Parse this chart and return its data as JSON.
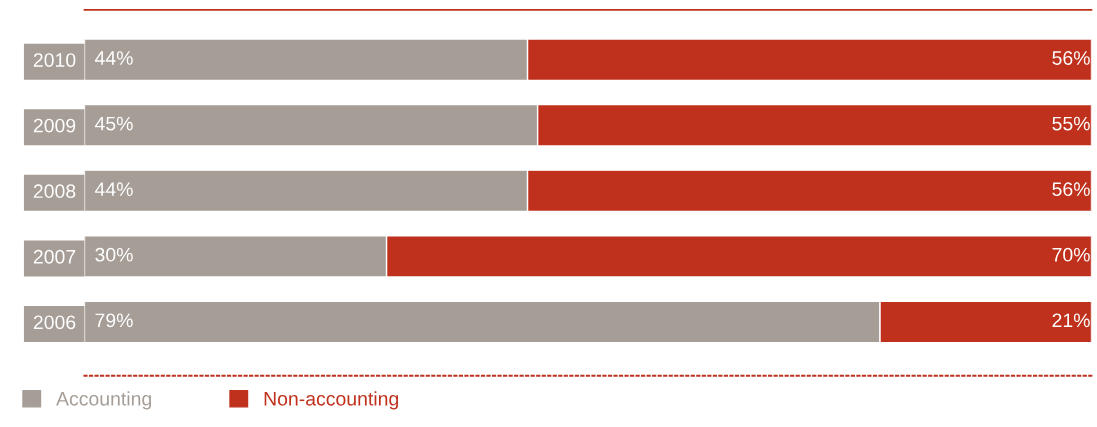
{
  "chart_data": {
    "type": "bar",
    "orientation": "horizontal",
    "stacked": true,
    "categories": [
      "2010",
      "2009",
      "2008",
      "2007",
      "2006"
    ],
    "series": [
      {
        "name": "Accounting",
        "color": "#a59d96",
        "values": [
          44,
          45,
          44,
          30,
          79
        ],
        "value_labels": [
          "44%",
          "45%",
          "44%",
          "30%",
          "79%"
        ]
      },
      {
        "name": "Non-accounting",
        "color": "#c0311d",
        "values": [
          56,
          55,
          56,
          70,
          21
        ],
        "value_labels": [
          "56%",
          "55%",
          "56%",
          "70%",
          "21%"
        ]
      }
    ],
    "tick_labels": "y",
    "legend": "bottom left",
    "grid": false
  }
}
